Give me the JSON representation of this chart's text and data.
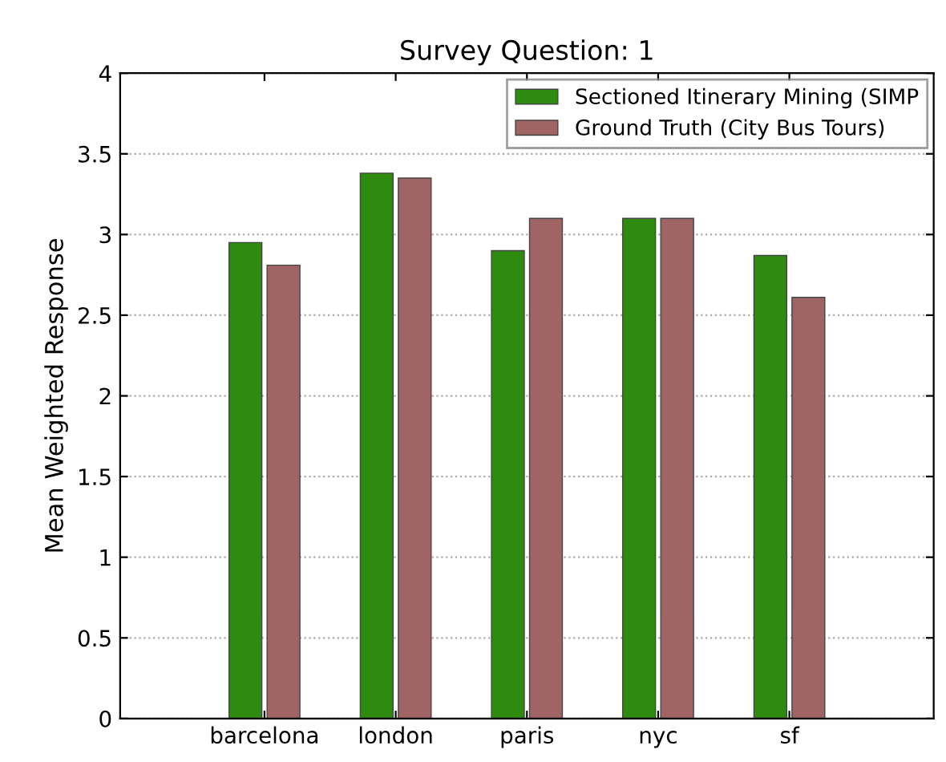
{
  "chart_data": {
    "type": "bar",
    "title": "Survey Question: 1",
    "ylabel": "Mean Weighted Response",
    "categories": [
      "barcelona",
      "london",
      "paris",
      "nyc",
      "sf"
    ],
    "series": [
      {
        "name": "Sectioned Itinerary Mining (SIMP",
        "color": "#2e8b10",
        "values": [
          2.95,
          3.38,
          2.9,
          3.1,
          2.87
        ]
      },
      {
        "name": "Ground Truth (City Bus Tours)",
        "color": "#a06464",
        "values": [
          2.81,
          3.35,
          3.1,
          3.1,
          2.61
        ]
      }
    ],
    "ylim": [
      0,
      4
    ],
    "yticks": [
      0,
      0.5,
      1,
      1.5,
      2,
      2.5,
      3,
      3.5,
      4
    ],
    "grid": "y",
    "legend": "top right"
  }
}
